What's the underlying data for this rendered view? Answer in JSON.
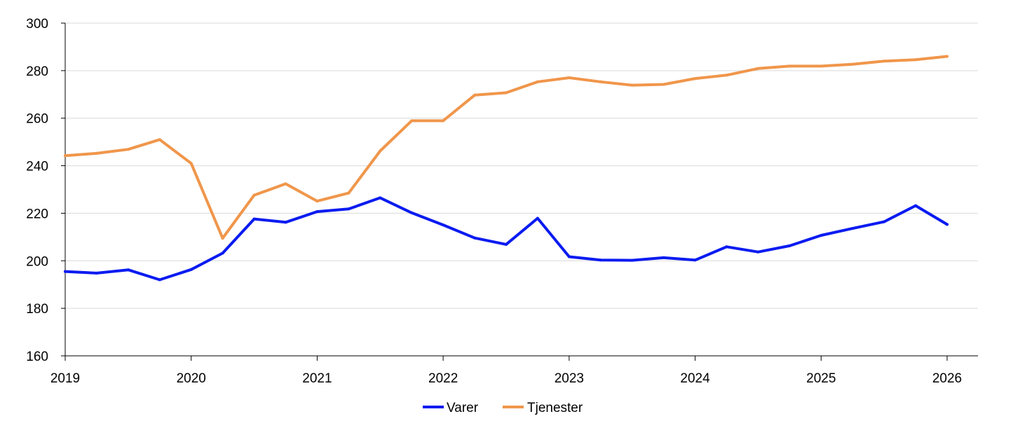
{
  "chart_data": {
    "type": "line",
    "title": "",
    "xlabel": "",
    "ylabel": "",
    "xlim": [
      2019,
      2026
    ],
    "ylim": [
      160,
      300
    ],
    "x_ticks": [
      "2019",
      "2020",
      "2021",
      "2022",
      "2023",
      "2024",
      "2025",
      "2026"
    ],
    "y_ticks": [
      "160",
      "180",
      "200",
      "220",
      "240",
      "260",
      "280",
      "300"
    ],
    "grid": "horizontal",
    "legend_position": "bottom-center",
    "x": [
      2019.0,
      2019.25,
      2019.5,
      2019.75,
      2020.0,
      2020.25,
      2020.5,
      2020.75,
      2021.0,
      2021.25,
      2021.5,
      2021.75,
      2022.0,
      2022.25,
      2022.5,
      2022.75,
      2023.0,
      2023.25,
      2023.5,
      2023.75,
      2024.0,
      2024.25,
      2024.5,
      2024.75,
      2025.0,
      2025.25,
      2025.5,
      2025.75,
      2026.0
    ],
    "series": [
      {
        "name": "Varer",
        "color": "#0a1bf0",
        "values": [
          195.5,
          194.8,
          196.2,
          192.0,
          196.3,
          203.2,
          217.6,
          216.2,
          220.7,
          221.8,
          226.5,
          220.2,
          215.1,
          209.6,
          206.9,
          217.9,
          201.7,
          200.3,
          200.2,
          201.3,
          200.3,
          205.9,
          203.7,
          206.3,
          210.7,
          213.6,
          216.4,
          223.2,
          215.3
        ]
      },
      {
        "name": "Tjenester",
        "color": "#f0964b",
        "values": [
          244.2,
          245.2,
          246.9,
          251.0,
          241.0,
          209.5,
          227.6,
          232.4,
          225.1,
          228.5,
          246.2,
          258.9,
          258.9,
          269.7,
          270.7,
          275.3,
          277.0,
          275.3,
          273.9,
          274.2,
          276.7,
          278.1,
          280.9,
          281.9,
          281.9,
          282.7,
          284.0,
          284.6,
          286.0
        ]
      }
    ]
  }
}
